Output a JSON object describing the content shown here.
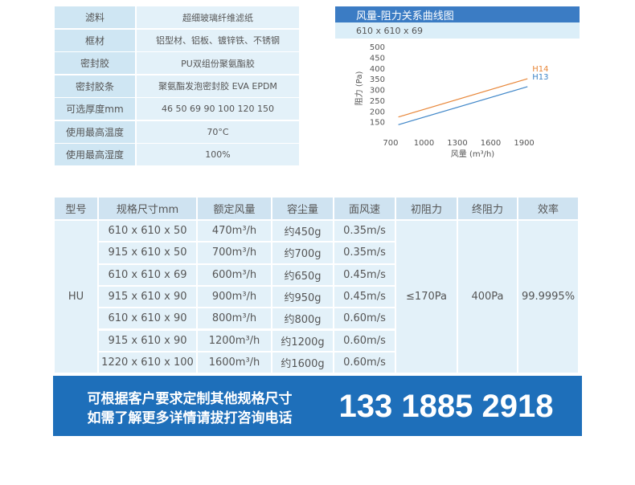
{
  "spec": {
    "rows": [
      [
        "滤料",
        "超细玻璃纤维滤纸"
      ],
      [
        "框材",
        "铝型材、铝板、镀锌铁、不锈钢"
      ],
      [
        "密封胶",
        "PU双组份聚氨酯胶"
      ],
      [
        "密封胶条",
        "聚氨酯发泡密封胶   EVA  EPDM"
      ],
      [
        "可选厚度mm",
        "46 50 69 90 100 120 150"
      ],
      [
        "使用最高温度",
        "70°C"
      ],
      [
        "使用最高湿度",
        "100%"
      ]
    ]
  },
  "chart": {
    "type": "line",
    "title": "风量-阻力关系曲线图",
    "subtitle": "610 x 610 x 69",
    "x_label": "风量 (m³/h)",
    "y_label": "阻力 (Pa)",
    "xlim": [
      650,
      1950
    ],
    "xticks": [
      700,
      1000,
      1300,
      1600,
      1900
    ],
    "ylim": [
      100,
      500
    ],
    "yticks": [
      150,
      200,
      250,
      300,
      350,
      400,
      450,
      500
    ],
    "grid": false,
    "x": [
      770,
      1930
    ],
    "series": [
      {
        "name": "H14",
        "color": "#e8873a",
        "values": [
          176,
          354
        ]
      },
      {
        "name": "H13",
        "color": "#3f86c8",
        "values": [
          140,
          317
        ]
      }
    ]
  },
  "table": {
    "headers": [
      "型号",
      "规格尺寸mm",
      "额定风量",
      "容尘量",
      "面风速",
      "初阻力",
      "终阻力",
      "效率"
    ],
    "model": "HU",
    "initial": "≤170Pa",
    "final": "400Pa",
    "efficiency": "99.9995%",
    "rows": [
      [
        "610 x 610 x 50",
        "470m³/h",
        "约450g",
        "0.35m/s"
      ],
      [
        "915 x 610 x 50",
        "700m³/h",
        "约700g",
        "0.35m/s"
      ],
      [
        "610 x 610 x 69",
        "600m³/h",
        "约650g",
        "0.45m/s"
      ],
      [
        "915 x 610 x 90",
        "900m³/h",
        "约950g",
        "0.45m/s"
      ],
      [
        "610 x 610 x 90",
        "800m³/h",
        "约800g",
        "0.60m/s"
      ],
      [
        "915 x 610 x 90",
        "1200m³/h",
        "约1200g",
        "0.60m/s"
      ],
      [
        "1220 x 610 x 100",
        "1600m³/h",
        "约1600g",
        "0.60m/s"
      ]
    ]
  },
  "banner": {
    "line1": "可根据客户要求定制其他规格尺寸",
    "line2": "如需了解更多详情请拔打咨询电话",
    "phone": "133 1885 2918"
  }
}
